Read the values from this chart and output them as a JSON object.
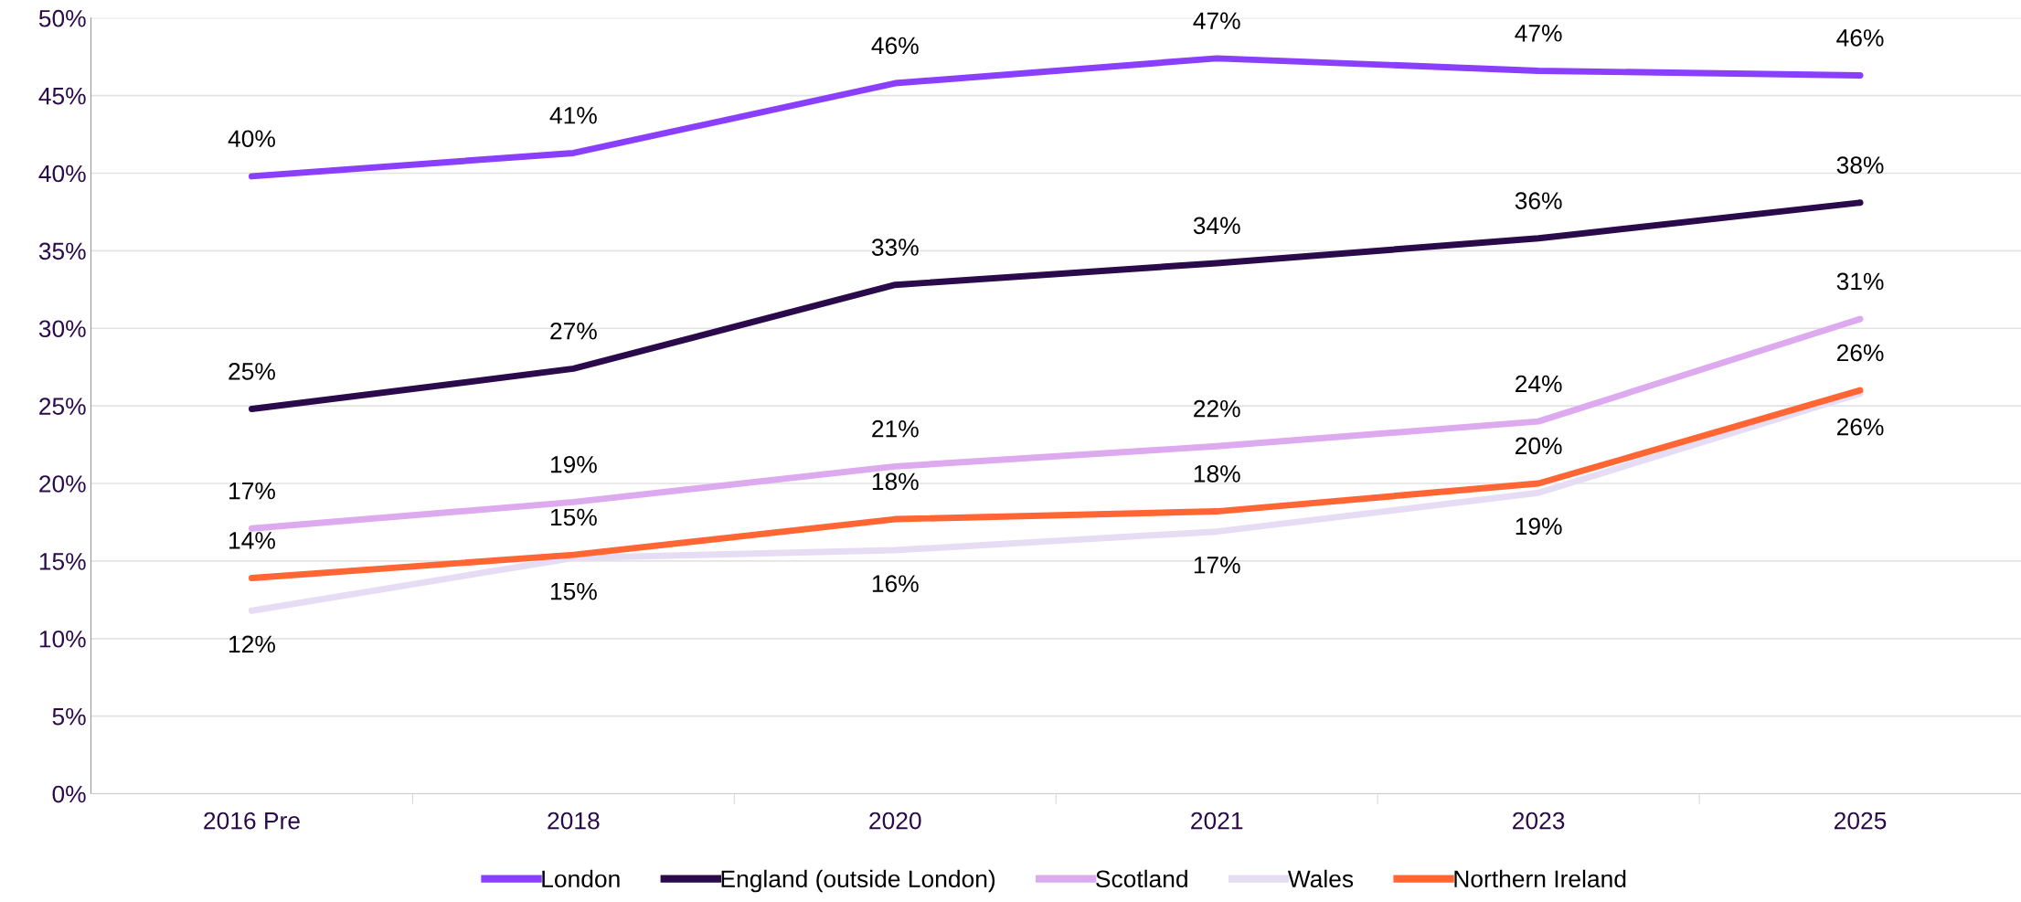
{
  "chart_data": {
    "type": "line",
    "categories": [
      "2016 Pre",
      "2018",
      "2020",
      "2021",
      "2023",
      "2025"
    ],
    "series": [
      {
        "name": "London",
        "color": "#8a3ffc",
        "values": [
          39.8,
          41.3,
          45.8,
          47.4,
          46.6,
          46.3
        ],
        "value_labels": [
          "40%",
          "41%",
          "46%",
          "47%",
          "47%",
          "46%"
        ]
      },
      {
        "name": "England (outside London)",
        "color": "#2a0a4a",
        "values": [
          24.8,
          27.4,
          32.8,
          34.2,
          35.8,
          38.1
        ],
        "value_labels": [
          "25%",
          "27%",
          "33%",
          "34%",
          "36%",
          "38%"
        ]
      },
      {
        "name": "Scotland",
        "color": "#ddaaf0",
        "values": [
          17.1,
          18.8,
          21.1,
          22.4,
          24.0,
          30.6
        ],
        "value_labels": [
          "17%",
          "19%",
          "21%",
          "22%",
          "24%",
          "31%"
        ]
      },
      {
        "name": "Wales",
        "color": "#e6ddf5",
        "values": [
          11.8,
          15.2,
          15.7,
          16.9,
          19.4,
          25.8
        ],
        "value_labels": [
          "12%",
          "15%",
          "16%",
          "17%",
          "19%",
          "26%"
        ]
      },
      {
        "name": "Northern Ireland",
        "color": "#ff6633",
        "values": [
          13.9,
          15.4,
          17.7,
          18.2,
          20.0,
          26.0
        ],
        "value_labels": [
          "14%",
          "15%",
          "18%",
          "18%",
          "20%",
          "26%"
        ]
      }
    ],
    "ylim": [
      0,
      50
    ],
    "yticks": [
      {
        "value": 0,
        "label": "0%"
      },
      {
        "value": 5,
        "label": "5%"
      },
      {
        "value": 10,
        "label": "10%"
      },
      {
        "value": 15,
        "label": "15%"
      },
      {
        "value": 20,
        "label": "20%"
      },
      {
        "value": 25,
        "label": "25%"
      },
      {
        "value": 30,
        "label": "30%"
      },
      {
        "value": 35,
        "label": "35%"
      },
      {
        "value": 40,
        "label": "40%"
      },
      {
        "value": 45,
        "label": "45%"
      },
      {
        "value": 50,
        "label": "50%"
      }
    ],
    "grid": "y",
    "legend": "bottom",
    "marker": "none",
    "line_style": "solid"
  }
}
